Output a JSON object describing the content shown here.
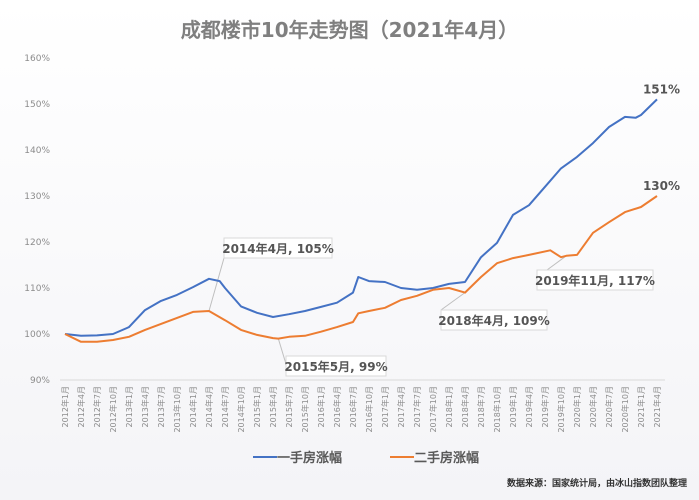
{
  "chart_data": {
    "type": "line",
    "title": "成都楼市10年走势图（2021年4月）",
    "source": "数据来源：国家统计局，由冰山指数团队整理",
    "ylim": [
      90,
      160
    ],
    "yticks": [
      "90%",
      "100%",
      "110%",
      "120%",
      "130%",
      "140%",
      "150%",
      "160%"
    ],
    "ytick_values": [
      90,
      100,
      110,
      120,
      130,
      140,
      150,
      160
    ],
    "grid": false,
    "legend_position": "bottom",
    "xticks": [
      "2012年1月",
      "2012年4月",
      "2012年7月",
      "2012年10月",
      "2013年1月",
      "2013年4月",
      "2013年7月",
      "2013年10月",
      "2014年1月",
      "2014年4月",
      "2014年7月",
      "2014年10月",
      "2015年1月",
      "2015年4月",
      "2015年7月",
      "2015年10月",
      "2016年1月",
      "2016年4月",
      "2016年7月",
      "2016年10月",
      "2017年1月",
      "2017年4月",
      "2017年7月",
      "2017年10月",
      "2018年1月",
      "2018年4月",
      "2018年7月",
      "2018年10月",
      "2019年1月",
      "2019年4月",
      "2019年7月",
      "2019年10月",
      "2020年1月",
      "2020年4月",
      "2020年7月",
      "2020年10月",
      "2021年1月",
      "2021年4月"
    ],
    "series": [
      {
        "name": "一手房涨幅",
        "color": "#4472c4",
        "points": [
          [
            "2012-01",
            100
          ],
          [
            "2012-04",
            99.6
          ],
          [
            "2012-07",
            99.7
          ],
          [
            "2012-10",
            100
          ],
          [
            "2013-01",
            101.5
          ],
          [
            "2013-04",
            105.2
          ],
          [
            "2013-07",
            107.2
          ],
          [
            "2013-10",
            108.5
          ],
          [
            "2014-01",
            110.2
          ],
          [
            "2014-04",
            112
          ],
          [
            "2014-06",
            111.5
          ],
          [
            "2014-07",
            110
          ],
          [
            "2014-10",
            106
          ],
          [
            "2015-01",
            104.6
          ],
          [
            "2015-04",
            103.7
          ],
          [
            "2015-07",
            104.3
          ],
          [
            "2015-10",
            105
          ],
          [
            "2016-01",
            105.9
          ],
          [
            "2016-04",
            106.8
          ],
          [
            "2016-07",
            109
          ],
          [
            "2016-08",
            112.4
          ],
          [
            "2016-10",
            111.5
          ],
          [
            "2017-01",
            111.3
          ],
          [
            "2017-04",
            110
          ],
          [
            "2017-07",
            109.6
          ],
          [
            "2017-10",
            110
          ],
          [
            "2018-01",
            110.9
          ],
          [
            "2018-04",
            111.3
          ],
          [
            "2018-07",
            116.7
          ],
          [
            "2018-10",
            119.8
          ],
          [
            "2019-01",
            125.9
          ],
          [
            "2019-04",
            128
          ],
          [
            "2019-07",
            132
          ],
          [
            "2019-10",
            136
          ],
          [
            "2020-01",
            138.5
          ],
          [
            "2020-04",
            141.5
          ],
          [
            "2020-07",
            145
          ],
          [
            "2020-10",
            147.2
          ],
          [
            "2020-12",
            147
          ],
          [
            "2021-01",
            147.6
          ],
          [
            "2021-04",
            151
          ]
        ]
      },
      {
        "name": "二手房涨幅",
        "color": "#ed7d31",
        "points": [
          [
            "2012-01",
            100
          ],
          [
            "2012-04",
            98.3
          ],
          [
            "2012-07",
            98.3
          ],
          [
            "2012-10",
            98.7
          ],
          [
            "2013-01",
            99.4
          ],
          [
            "2013-04",
            100.9
          ],
          [
            "2013-07",
            102.2
          ],
          [
            "2013-10",
            103.5
          ],
          [
            "2014-01",
            104.8
          ],
          [
            "2014-04",
            105
          ],
          [
            "2014-07",
            103
          ],
          [
            "2014-10",
            100.9
          ],
          [
            "2015-01",
            99.8
          ],
          [
            "2015-04",
            99.1
          ],
          [
            "2015-05",
            99
          ],
          [
            "2015-07",
            99.4
          ],
          [
            "2015-10",
            99.6
          ],
          [
            "2016-01",
            100.5
          ],
          [
            "2016-04",
            101.5
          ],
          [
            "2016-07",
            102.6
          ],
          [
            "2016-08",
            104.5
          ],
          [
            "2016-10",
            105
          ],
          [
            "2017-01",
            105.7
          ],
          [
            "2017-04",
            107.4
          ],
          [
            "2017-07",
            108.3
          ],
          [
            "2017-10",
            109.6
          ],
          [
            "2018-01",
            110
          ],
          [
            "2018-04",
            109
          ],
          [
            "2018-07",
            112.4
          ],
          [
            "2018-10",
            115.4
          ],
          [
            "2019-01",
            116.5
          ],
          [
            "2019-04",
            117.2
          ],
          [
            "2019-08",
            118.2
          ],
          [
            "2019-10",
            116.7
          ],
          [
            "2019-11",
            117
          ],
          [
            "2020-01",
            117.2
          ],
          [
            "2020-04",
            122
          ],
          [
            "2020-07",
            124.3
          ],
          [
            "2020-10",
            126.5
          ],
          [
            "2021-01",
            127.6
          ],
          [
            "2021-04",
            130
          ]
        ]
      }
    ],
    "end_labels": [
      "151%",
      "130%"
    ],
    "annotations": [
      {
        "text": "2014年4月, 105%",
        "date": "2014-04",
        "value": 105
      },
      {
        "text": "2015年5月, 99%",
        "date": "2015-05",
        "value": 99
      },
      {
        "text": "2018年4月, 109%",
        "date": "2018-04",
        "value": 109
      },
      {
        "text": "2019年11月, 117%",
        "date": "2019-11",
        "value": 117
      }
    ]
  }
}
